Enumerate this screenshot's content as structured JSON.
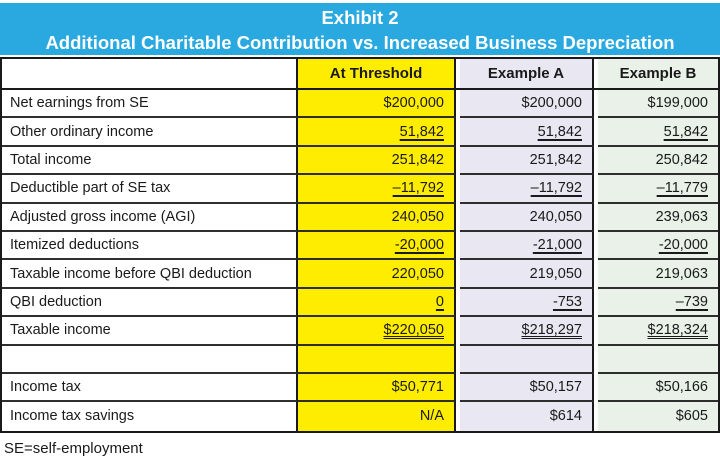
{
  "title": {
    "line1": "Exhibit 2",
    "line2": "Additional Charitable Contribution vs. Increased Business Depreciation"
  },
  "columns": [
    {
      "key": "at_threshold",
      "label": "At Threshold",
      "color": "#ffed00"
    },
    {
      "key": "example_a",
      "label": "Example A",
      "color": "#e9e7f2"
    },
    {
      "key": "example_b",
      "label": "Example B",
      "color": "#e9f1e9"
    }
  ],
  "rows": [
    {
      "label": "Net earnings from SE",
      "at_threshold": "$200,000",
      "example_a": "$200,000",
      "example_b": "$199,000",
      "underline": "none"
    },
    {
      "label": "Other ordinary income",
      "at_threshold": "51,842",
      "example_a": "51,842",
      "example_b": "51,842",
      "underline": "single"
    },
    {
      "label": "Total income",
      "at_threshold": "251,842",
      "example_a": "251,842",
      "example_b": "250,842",
      "underline": "none"
    },
    {
      "label": "Deductible part of SE tax",
      "at_threshold": "–11,792",
      "example_a": "–11,792",
      "example_b": "–11,779",
      "underline": "single"
    },
    {
      "label": "Adjusted gross income (AGI)",
      "at_threshold": "240,050",
      "example_a": "240,050",
      "example_b": "239,063",
      "underline": "none"
    },
    {
      "label": "Itemized deductions",
      "at_threshold": "-20,000",
      "example_a": "-21,000",
      "example_b": "-20,000",
      "underline": "single"
    },
    {
      "label": "Taxable income before QBI deduction",
      "at_threshold": "220,050",
      "example_a": "219,050",
      "example_b": "219,063",
      "underline": "none"
    },
    {
      "label": "QBI deduction",
      "at_threshold": "0",
      "example_a": "-753",
      "example_b": "–739",
      "underline": "single"
    },
    {
      "label": "Taxable income",
      "at_threshold": "$220,050",
      "example_a": "$218,297",
      "example_b": "$218,324",
      "underline": "double"
    },
    {
      "label": "",
      "at_threshold": "",
      "example_a": "",
      "example_b": "",
      "underline": "none"
    },
    {
      "label": "Income tax",
      "at_threshold": "$50,771",
      "example_a": "$50,157",
      "example_b": "$50,166",
      "underline": "none"
    },
    {
      "label": "Income tax savings",
      "at_threshold": "N/A",
      "example_a": "$614",
      "example_b": "$605",
      "underline": "none"
    }
  ],
  "footnote": "SE=self-employment",
  "colors": {
    "banner_blue": "#29a9e0",
    "threshold_yellow": "#ffed00",
    "example_a_lavender": "#e9e7f2",
    "example_b_green": "#e9f1e9",
    "border_black": "#1a1a1a"
  }
}
